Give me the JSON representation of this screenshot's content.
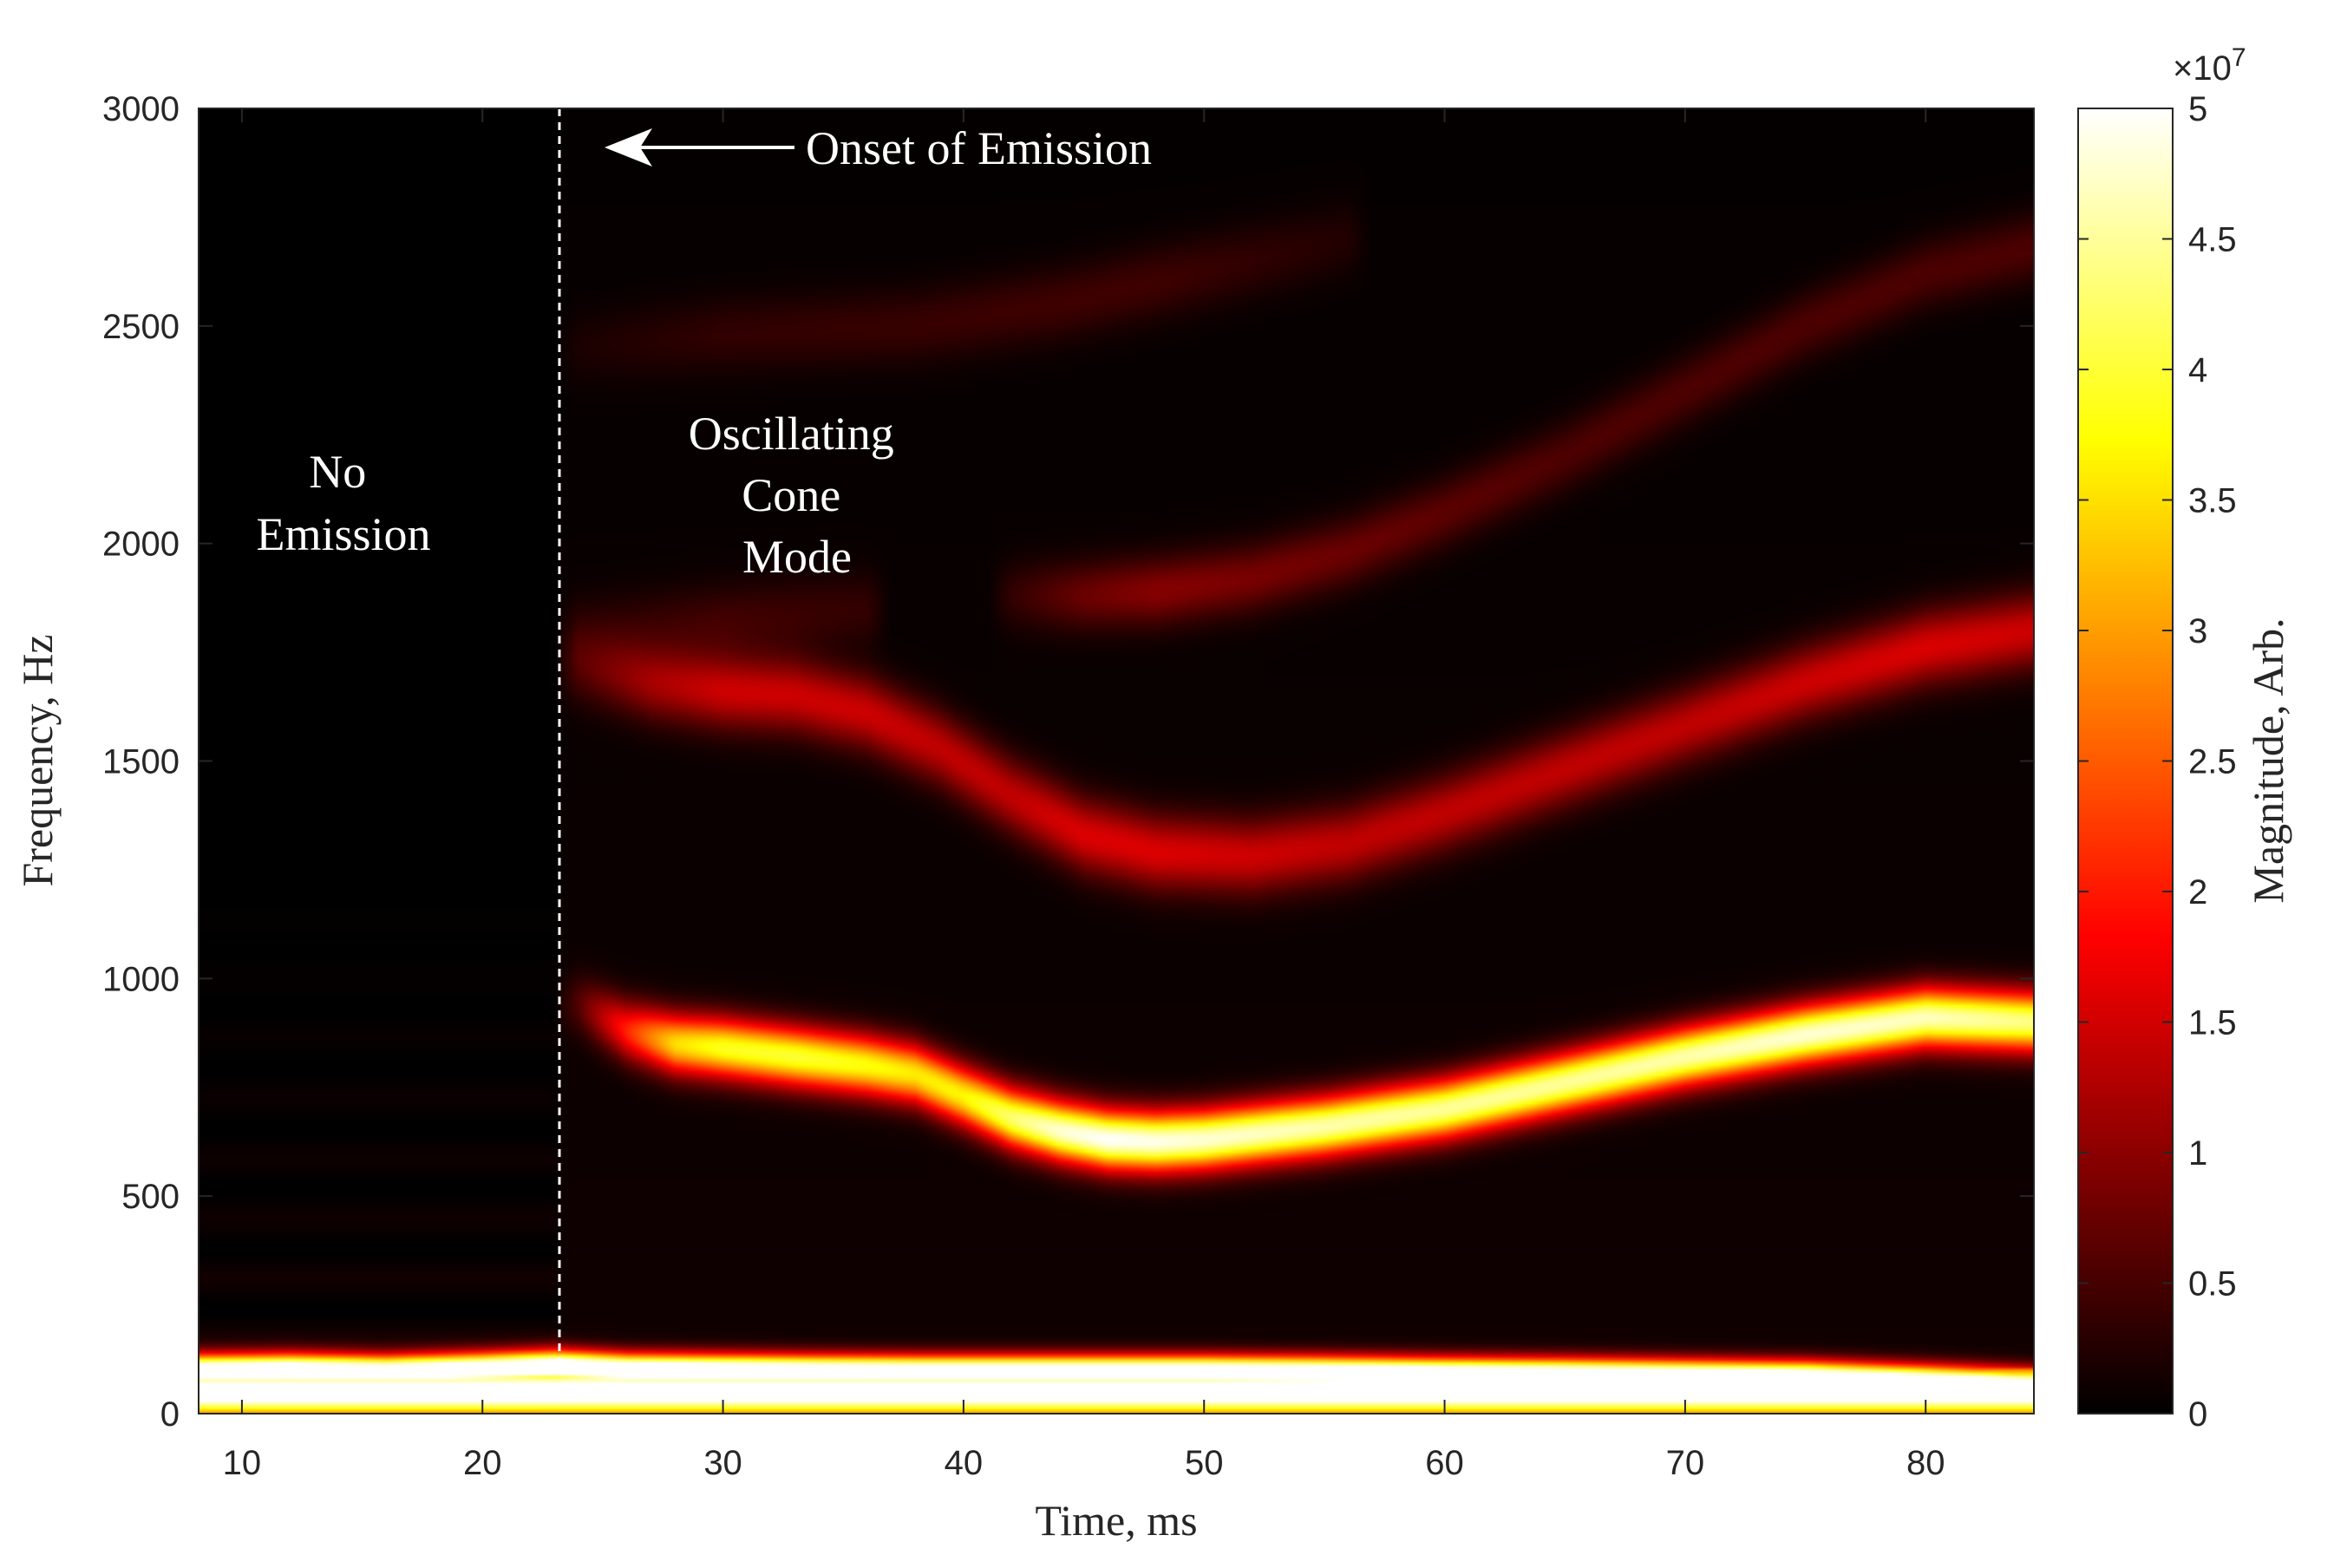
{
  "chart_data": {
    "type": "heatmap",
    "title": "",
    "xlabel": "Time, ms",
    "ylabel": "Frequency, Hz",
    "xlim": [
      8.2,
      84.5
    ],
    "ylim": [
      0,
      3000
    ],
    "x_ticks": [
      10,
      20,
      30,
      40,
      50,
      60,
      70,
      80
    ],
    "x_tick_labels": [
      "10",
      "20",
      "30",
      "40",
      "50",
      "60",
      "70",
      "80"
    ],
    "y_ticks": [
      0,
      500,
      1000,
      1500,
      2000,
      2500,
      3000
    ],
    "y_tick_labels": [
      "0",
      "500",
      "1000",
      "1500",
      "2000",
      "2500",
      "3000"
    ],
    "colormap": "hot",
    "colorbar": {
      "label": "Magnitude, Arb.",
      "exponent_label": "×10",
      "exponent": "7",
      "clim": [
        0,
        5
      ],
      "ticks": [
        0,
        0.5,
        1,
        1.5,
        2,
        2.5,
        3,
        3.5,
        4,
        4.5,
        5
      ],
      "tick_labels": [
        "0",
        "0.5",
        "1",
        "1.5",
        "2",
        "2.5",
        "3",
        "3.5",
        "4",
        "4.5",
        "5"
      ]
    },
    "grid": false,
    "ridges": [
      {
        "t": [
          8.2,
          12,
          16,
          20,
          23,
          26,
          30,
          34,
          38,
          42,
          46,
          50,
          55,
          60,
          65,
          70,
          75,
          80,
          84.5
        ],
        "f": [
          98,
          100,
          96,
          102,
          108,
          100,
          98,
          96,
          95,
          95,
          95,
          95,
          93,
          90,
          88,
          85,
          82,
          72,
          62
        ],
        "peak": 6.0,
        "width_hz": 26
      },
      {
        "t": [
          24,
          26,
          28,
          30,
          33,
          36,
          38,
          40,
          42,
          44,
          46,
          48,
          50,
          55,
          60,
          65,
          70,
          75,
          80,
          84.5
        ],
        "f": [
          940,
          880,
          850,
          840,
          820,
          800,
          780,
          730,
          680,
          650,
          630,
          625,
          630,
          660,
          700,
          760,
          820,
          870,
          910,
          900
        ],
        "amp": [
          0.5,
          2.0,
          3.4,
          3.8,
          3.9,
          3.7,
          3.5,
          3.6,
          4.2,
          4.7,
          4.9,
          4.8,
          4.7,
          4.5,
          4.4,
          4.4,
          4.5,
          4.7,
          4.6,
          4.3
        ],
        "width_hz": 48
      },
      {
        "t": [
          24,
          27,
          30,
          33,
          36,
          39,
          42,
          45,
          48,
          52,
          56,
          60,
          65,
          70,
          75,
          80,
          84.5
        ],
        "f": [
          1720,
          1680,
          1660,
          1650,
          1610,
          1530,
          1420,
          1330,
          1290,
          1280,
          1310,
          1380,
          1480,
          1580,
          1680,
          1760,
          1800
        ],
        "amp": [
          0.5,
          1.1,
          1.4,
          1.4,
          1.4,
          1.3,
          1.3,
          1.5,
          1.5,
          1.4,
          1.3,
          1.3,
          1.3,
          1.3,
          1.4,
          1.5,
          1.4
        ],
        "width_hz": 60
      },
      {
        "t": [
          42,
          45,
          48,
          52,
          56,
          60,
          65,
          70,
          75,
          80,
          84.5
        ],
        "f": [
          1880,
          1880,
          1890,
          1920,
          1980,
          2070,
          2200,
          2350,
          2500,
          2620,
          2680
        ],
        "amp": [
          0.3,
          0.7,
          0.9,
          0.8,
          0.7,
          0.6,
          0.5,
          0.5,
          0.5,
          0.5,
          0.5
        ],
        "width_hz": 55
      },
      {
        "t": [
          24,
          30,
          38,
          44,
          48,
          52,
          56
        ],
        "f": [
          2450,
          2480,
          2500,
          2550,
          2600,
          2650,
          2700
        ],
        "amp": [
          0.15,
          0.3,
          0.35,
          0.4,
          0.4,
          0.3,
          0.2
        ],
        "width_hz": 60
      },
      {
        "t": [
          24,
          30,
          36
        ],
        "f": [
          1800,
          1820,
          1850
        ],
        "amp": [
          0.2,
          0.4,
          0.3
        ],
        "width_hz": 60
      }
    ],
    "onset_line": {
      "x": 23.2
    },
    "annotations": [
      {
        "lines": [
          "No",
          "Emission"
        ]
      },
      {
        "lines": [
          "Oscillating",
          "Cone",
          "Mode"
        ]
      },
      {
        "text": "Onset of Emission"
      }
    ]
  }
}
